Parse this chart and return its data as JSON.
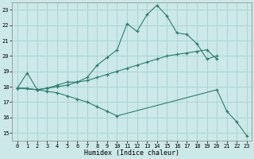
{
  "xlabel": "Humidex (Indice chaleur)",
  "background_color": "#cce8e8",
  "grid_color": "#aad4d4",
  "line_color": "#2e7d6e",
  "xlim": [
    -0.5,
    23.5
  ],
  "ylim": [
    14.5,
    23.5
  ],
  "yticks": [
    15,
    16,
    17,
    18,
    19,
    20,
    21,
    22,
    23
  ],
  "xticks": [
    0,
    1,
    2,
    3,
    4,
    5,
    6,
    7,
    8,
    9,
    10,
    11,
    12,
    13,
    14,
    15,
    16,
    17,
    18,
    19,
    20,
    21,
    22,
    23
  ],
  "line1_x": [
    0,
    1,
    2,
    3,
    4,
    5,
    6,
    7,
    8,
    9,
    10,
    11,
    12,
    13,
    14,
    15,
    16,
    17,
    18,
    19,
    20
  ],
  "line1_y": [
    17.9,
    18.9,
    17.8,
    17.9,
    18.1,
    18.3,
    18.3,
    18.6,
    19.4,
    19.9,
    20.4,
    22.1,
    21.6,
    22.7,
    23.3,
    22.6,
    21.5,
    21.4,
    20.8,
    19.8,
    20.0
  ],
  "line2_x": [
    0,
    1,
    2,
    3,
    4,
    5,
    6,
    7,
    8,
    9,
    10,
    11,
    12,
    13,
    14,
    15,
    16,
    17,
    18,
    19,
    20
  ],
  "line2_y": [
    17.9,
    17.9,
    17.8,
    17.9,
    18.0,
    18.1,
    18.3,
    18.4,
    18.6,
    18.8,
    19.0,
    19.2,
    19.4,
    19.6,
    19.8,
    20.0,
    20.1,
    20.2,
    20.3,
    20.4,
    19.8
  ],
  "line3_x": [
    0,
    2,
    3,
    4,
    5,
    6,
    7,
    8,
    9,
    10,
    20,
    21,
    22,
    23
  ],
  "line3_y": [
    17.9,
    17.8,
    17.7,
    17.6,
    17.4,
    17.2,
    17.0,
    16.7,
    16.4,
    16.1,
    17.8,
    16.4,
    15.7,
    14.8
  ]
}
